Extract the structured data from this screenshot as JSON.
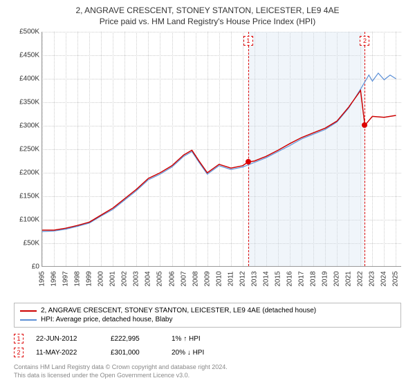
{
  "title": "2, ANGRAVE CRESCENT, STONEY STANTON, LEICESTER, LE9 4AE",
  "subtitle": "Price paid vs. HM Land Registry's House Price Index (HPI)",
  "chart": {
    "type": "line",
    "xlim": [
      1995,
      2025.5
    ],
    "ylim": [
      0,
      500000
    ],
    "x_ticks": [
      1995,
      1996,
      1997,
      1998,
      1999,
      2000,
      2001,
      2002,
      2003,
      2004,
      2005,
      2006,
      2007,
      2008,
      2009,
      2010,
      2011,
      2012,
      2013,
      2014,
      2015,
      2016,
      2017,
      2018,
      2019,
      2020,
      2021,
      2022,
      2023,
      2024,
      2025
    ],
    "y_ticks": [
      0,
      50000,
      100000,
      150000,
      200000,
      250000,
      300000,
      350000,
      400000,
      450000,
      500000
    ],
    "y_tick_labels": [
      "£0",
      "£50K",
      "£100K",
      "£150K",
      "£200K",
      "£250K",
      "£300K",
      "£350K",
      "£400K",
      "£450K",
      "£500K"
    ],
    "grid_color": "#cccccc",
    "background_color": "#ffffff",
    "shaded_region": {
      "x_start": 2012.47,
      "x_end": 2022.36,
      "color": "#d4e3f2",
      "opacity": 0.35
    },
    "series": [
      {
        "name": "property_price",
        "label": "2, ANGRAVE CRESCENT, STONEY STANTON, LEICESTER, LE9 4AE (detached house)",
        "color": "#cc0000",
        "line_width": 1.5,
        "data": [
          [
            1995,
            78000
          ],
          [
            1996,
            78000
          ],
          [
            1997,
            82000
          ],
          [
            1998,
            88000
          ],
          [
            1999,
            95000
          ],
          [
            2000,
            110000
          ],
          [
            2001,
            125000
          ],
          [
            2002,
            145000
          ],
          [
            2003,
            165000
          ],
          [
            2004,
            188000
          ],
          [
            2005,
            200000
          ],
          [
            2006,
            215000
          ],
          [
            2007,
            238000
          ],
          [
            2007.7,
            248000
          ],
          [
            2008.3,
            225000
          ],
          [
            2009,
            200000
          ],
          [
            2010,
            218000
          ],
          [
            2011,
            210000
          ],
          [
            2012,
            215000
          ],
          [
            2012.47,
            222995
          ],
          [
            2013,
            225000
          ],
          [
            2014,
            235000
          ],
          [
            2015,
            248000
          ],
          [
            2016,
            262000
          ],
          [
            2017,
            275000
          ],
          [
            2018,
            285000
          ],
          [
            2019,
            295000
          ],
          [
            2020,
            310000
          ],
          [
            2021,
            340000
          ],
          [
            2022,
            375000
          ],
          [
            2022.36,
            301000
          ],
          [
            2023,
            320000
          ],
          [
            2024,
            318000
          ],
          [
            2025,
            322000
          ]
        ]
      },
      {
        "name": "hpi_blaby",
        "label": "HPI: Average price, detached house, Blaby",
        "color": "#5b8fd6",
        "line_width": 1.2,
        "data": [
          [
            1995,
            75000
          ],
          [
            1996,
            76000
          ],
          [
            1997,
            80000
          ],
          [
            1998,
            86000
          ],
          [
            1999,
            93000
          ],
          [
            2000,
            108000
          ],
          [
            2001,
            122000
          ],
          [
            2002,
            142000
          ],
          [
            2003,
            162000
          ],
          [
            2004,
            185000
          ],
          [
            2005,
            197000
          ],
          [
            2006,
            212000
          ],
          [
            2007,
            235000
          ],
          [
            2007.7,
            245000
          ],
          [
            2008.3,
            222000
          ],
          [
            2009,
            197000
          ],
          [
            2010,
            215000
          ],
          [
            2011,
            207000
          ],
          [
            2012,
            212000
          ],
          [
            2013,
            222000
          ],
          [
            2014,
            232000
          ],
          [
            2015,
            245000
          ],
          [
            2016,
            258000
          ],
          [
            2017,
            272000
          ],
          [
            2018,
            282000
          ],
          [
            2019,
            292000
          ],
          [
            2020,
            308000
          ],
          [
            2021,
            338000
          ],
          [
            2022,
            378000
          ],
          [
            2022.7,
            408000
          ],
          [
            2023,
            395000
          ],
          [
            2023.5,
            412000
          ],
          [
            2024,
            398000
          ],
          [
            2024.5,
            408000
          ],
          [
            2025,
            400000
          ]
        ]
      }
    ],
    "markers": [
      {
        "id": "1",
        "x": 2012.47,
        "y": 222995
      },
      {
        "id": "2",
        "x": 2022.36,
        "y": 301000
      }
    ]
  },
  "legend": {
    "border_color": "#bbbbbb"
  },
  "sales": [
    {
      "marker": "1",
      "date": "22-JUN-2012",
      "price": "£222,995",
      "delta": "1% ↑ HPI"
    },
    {
      "marker": "2",
      "date": "11-MAY-2022",
      "price": "£301,000",
      "delta": "20% ↓ HPI"
    }
  ],
  "footnote_line1": "Contains HM Land Registry data © Crown copyright and database right 2024.",
  "footnote_line2": "This data is licensed under the Open Government Licence v3.0."
}
